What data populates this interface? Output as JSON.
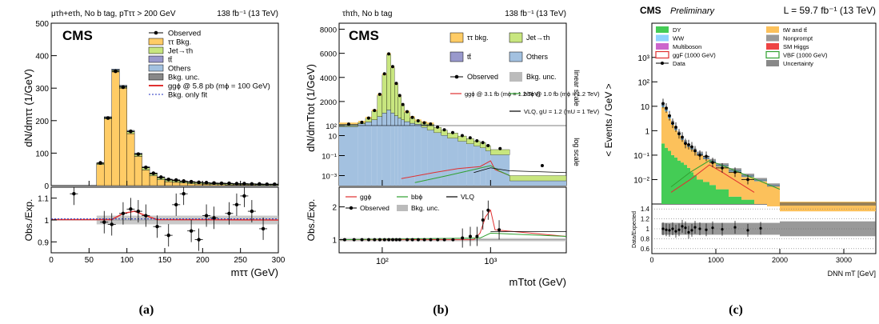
{
  "chart_data": [
    {
      "id": "a",
      "type": "bar",
      "panel_label": "(a)",
      "header_left": "μτh+eτh, No b tag, pTττ > 200 GeV",
      "header_right": "138 fb⁻¹ (13 TeV)",
      "cms": "CMS",
      "ylabel": "dN/dmττ (1/GeV)",
      "ratio_ylabel": "Obs./Exp.",
      "xlabel": "mττ (GeV)",
      "xlim": [
        0,
        300
      ],
      "ylim": [
        0,
        500
      ],
      "ratio_ylim": [
        0.85,
        1.15
      ],
      "x_ticks": [
        "0",
        "50",
        "100",
        "150",
        "200",
        "250",
        "300"
      ],
      "y_ticks": [
        "0",
        "100",
        "200",
        "300",
        "400",
        "500"
      ],
      "ratio_ticks": [
        "0.9",
        "1",
        "1.1"
      ],
      "legend": [
        "Observed",
        "ττ Bkg.",
        "Jet→τh",
        "tt̄",
        "Others",
        "Bkg. unc.",
        "ggϕ @ 5.8 pb (mϕ = 100 GeV)",
        "Bkg. only fit"
      ],
      "bin_edges": [
        0,
        60,
        70,
        80,
        90,
        100,
        110,
        120,
        130,
        140,
        150,
        160,
        170,
        180,
        190,
        200,
        210,
        220,
        230,
        240,
        250,
        260,
        270,
        280,
        290,
        300
      ],
      "series": [
        {
          "name": "ττ Bkg.",
          "values": [
            0,
            65,
            205,
            350,
            300,
            160,
            90,
            48,
            30,
            18,
            12,
            10,
            8,
            6,
            5,
            4,
            3,
            3,
            2,
            2,
            2,
            2,
            1,
            1,
            1
          ]
        },
        {
          "name": "Jet→τh",
          "values": [
            0,
            3,
            4,
            5,
            5,
            6,
            6,
            7,
            6,
            6,
            5,
            5,
            4,
            4,
            4,
            3,
            3,
            3,
            3,
            2,
            2,
            2,
            2,
            2,
            2
          ]
        },
        {
          "name": "tt̄",
          "values": [
            0,
            0,
            1,
            1,
            1,
            1,
            1,
            1,
            1,
            1,
            1,
            1,
            1,
            1,
            1,
            1,
            1,
            1,
            1,
            1,
            1,
            1,
            1,
            1,
            1
          ]
        },
        {
          "name": "Others",
          "values": [
            0,
            1,
            2,
            3,
            3,
            3,
            3,
            2,
            2,
            2,
            2,
            2,
            1,
            1,
            1,
            1,
            1,
            1,
            1,
            1,
            1,
            1,
            1,
            1,
            1
          ]
        }
      ],
      "observed": [
        0,
        70,
        208,
        352,
        303,
        167,
        97,
        56,
        38,
        26,
        19,
        17,
        14,
        12,
        10,
        9,
        8,
        7,
        7,
        6,
        6,
        5,
        5,
        4,
        4
      ],
      "ratio_points": [
        [
          30,
          1.12
        ],
        [
          70,
          0.99
        ],
        [
          80,
          0.98
        ],
        [
          95,
          1.03
        ],
        [
          105,
          1.05
        ],
        [
          115,
          1.04
        ],
        [
          125,
          1.02
        ],
        [
          140,
          0.97
        ],
        [
          155,
          0.93
        ],
        [
          165,
          1.07
        ],
        [
          175,
          1.12
        ],
        [
          185,
          0.95
        ],
        [
          195,
          0.91
        ],
        [
          205,
          1.02
        ],
        [
          215,
          1.01
        ],
        [
          235,
          1.03
        ],
        [
          245,
          1.07
        ],
        [
          255,
          1.11
        ],
        [
          265,
          1.04
        ],
        [
          280,
          0.96
        ]
      ]
    },
    {
      "id": "b",
      "type": "bar",
      "panel_label": "(b)",
      "header_left": "τhτh, No b tag",
      "header_right": "138 fb⁻¹ (13 TeV)",
      "cms": "CMS",
      "ylabel": "dN/dmTtot (1/GeV)",
      "ratio_ylabel": "Obs./Exp.",
      "xlabel": "mTtot (GeV)",
      "xscale": "log",
      "xlim": [
        40,
        5000
      ],
      "upper_scale_note": "linear scale",
      "lower_scale_note": "log scale",
      "y_ticks_linear": [
        "2000",
        "4000",
        "6000",
        "8000"
      ],
      "y_ticks_log": [
        "10⁻³",
        "10⁻¹",
        "10",
        "10²"
      ],
      "ratio_ticks": [
        "1",
        "2"
      ],
      "x_ticks": [
        "10²",
        "10³"
      ],
      "legend": [
        "ττ bkg.",
        "Jet→τh",
        "tt̄",
        "Others",
        "Observed",
        "Bkg. unc.",
        "ggϕ @ 3.1 fb (mϕ = 1.2 TeV)",
        "bbϕ @ 1.0 fb (mϕ = 1.2 TeV)",
        "VLQ, gU = 1.2 (mU = 1 TeV)"
      ],
      "ratio_legend": [
        "ggϕ",
        "bbϕ",
        "VLQ",
        "Observed",
        "Bkg. unc."
      ],
      "bin_edges": [
        40,
        60,
        70,
        80,
        90,
        100,
        110,
        120,
        130,
        140,
        150,
        160,
        180,
        200,
        230,
        260,
        300,
        350,
        400,
        500,
        600,
        700,
        800,
        900,
        1000,
        1500,
        5000
      ],
      "total_linear": [
        120,
        260,
        600,
        1200,
        2500,
        4200,
        5900,
        4800,
        3400,
        2400,
        1700,
        1100,
        650,
        380,
        220,
        120,
        65,
        35,
        18,
        9,
        5,
        3,
        2,
        1,
        0.4,
        0.001
      ],
      "jet_fraction_linear": [
        0.35,
        0.4,
        0.5,
        0.6,
        0.7,
        0.75,
        0.78,
        0.78,
        0.76,
        0.74,
        0.72,
        0.7,
        0.7,
        0.7,
        0.7,
        0.7,
        0.7,
        0.7,
        0.7,
        0.7,
        0.7,
        0.7,
        0.7,
        0.7,
        0.7,
        0.7
      ],
      "observed_linear": [
        125,
        270,
        620,
        1250,
        2600,
        4300,
        5950,
        4900,
        3500,
        2500,
        1750,
        1150,
        680,
        400,
        230,
        130,
        70,
        38,
        20,
        10,
        6,
        3,
        2,
        1,
        0.5,
        0.001
      ],
      "ratio_points": [
        [
          45,
          1.0
        ],
        [
          55,
          1.0
        ],
        [
          65,
          1.0
        ],
        [
          75,
          1.0
        ],
        [
          85,
          1.0
        ],
        [
          95,
          1.0
        ],
        [
          105,
          1.0
        ],
        [
          115,
          1.0
        ],
        [
          125,
          1.0
        ],
        [
          135,
          1.0
        ],
        [
          145,
          1.0
        ],
        [
          170,
          1.0
        ],
        [
          190,
          1.0
        ],
        [
          215,
          1.0
        ],
        [
          245,
          1.0
        ],
        [
          280,
          1.0
        ],
        [
          325,
          1.0
        ],
        [
          375,
          1.0
        ],
        [
          450,
          1.0
        ],
        [
          550,
          1.05
        ],
        [
          650,
          1.1
        ],
        [
          750,
          1.1
        ],
        [
          850,
          1.6
        ],
        [
          950,
          1.9
        ],
        [
          1200,
          1.3
        ]
      ]
    },
    {
      "id": "c",
      "type": "bar",
      "panel_label": "(c)",
      "cms": "CMS",
      "cms_sub": "Preliminary",
      "header_right": "L = 59.7 fb⁻¹ (13 TeV)",
      "ylabel": "< Events / GeV >",
      "ratio_ylabel": "Data/Expected",
      "xlabel": "DNN mT [GeV]",
      "yscale": "log",
      "xlim": [
        0,
        3500
      ],
      "x_ticks": [
        "0",
        "1000",
        "2000",
        "3000"
      ],
      "y_ticks": [
        "10⁻²",
        "10⁻¹",
        "1",
        "10",
        "10²",
        "10³"
      ],
      "ratio_ticks": [
        "0.6",
        "0.8",
        "1",
        "1.2",
        "1.4"
      ],
      "legend": [
        "DY",
        "tW and tt̄",
        "WW",
        "Nonprompt",
        "Multiboson",
        "SM Higgs",
        "ggF (1000 GeV)",
        "VBF (1000 GeV)",
        "Data",
        "Uncertainty"
      ],
      "bin_edges": [
        150,
        200,
        250,
        300,
        350,
        400,
        450,
        500,
        550,
        600,
        650,
        700,
        800,
        900,
        1000,
        1200,
        1400,
        1600,
        1800,
        2000,
        3500
      ],
      "total": [
        12,
        8,
        4,
        2.2,
        1.3,
        0.8,
        0.5,
        0.35,
        0.25,
        0.2,
        0.16,
        0.12,
        0.08,
        0.06,
        0.04,
        0.025,
        0.015,
        0.01,
        0.006,
        0.001
      ],
      "dy": [
        0.3,
        0.2,
        0.15,
        0.1,
        0.08,
        0.06,
        0.05,
        0.04,
        0.03,
        0.02,
        0.015,
        0.01,
        0.008,
        0.006,
        0.004,
        0.002,
        0.0015,
        0.001,
        0.0008,
        0.0005
      ],
      "data": [
        13,
        8.5,
        4.1,
        2.0,
        1.4,
        0.75,
        0.55,
        0.3,
        0.27,
        0.22,
        0.15,
        0.1,
        0.09,
        0.05,
        0.03,
        0.02,
        0.01,
        null,
        null,
        null
      ],
      "ratio_points": [
        [
          175,
          1.0
        ],
        [
          225,
          0.98
        ],
        [
          275,
          0.97
        ],
        [
          325,
          1.0
        ],
        [
          375,
          0.95
        ],
        [
          425,
          0.98
        ],
        [
          475,
          1.05
        ],
        [
          525,
          1.02
        ],
        [
          575,
          0.93
        ],
        [
          625,
          0.97
        ],
        [
          675,
          1.03
        ],
        [
          750,
          1.0
        ],
        [
          850,
          0.98
        ],
        [
          950,
          1.02
        ],
        [
          1100,
          0.99
        ],
        [
          1300,
          1.03
        ],
        [
          1500,
          0.97
        ],
        [
          1700,
          1.01
        ]
      ]
    }
  ],
  "colors": {
    "tautau": "#ffcc66",
    "jet": "#c8e67f",
    "ttbar": "#9999cc",
    "others": "#a3c1e0",
    "unc": "#bbbbbb",
    "signal_red": "#e03030",
    "bkg_fit_blue": "#2030c0",
    "bbphi_green": "#30a030",
    "dy": "#44cc55",
    "tw": "#fcc15b",
    "ww": "#8fd3ff",
    "nonprompt": "#999999",
    "multiboson": "#cc66cc",
    "smhiggs": "#ee4444"
  }
}
